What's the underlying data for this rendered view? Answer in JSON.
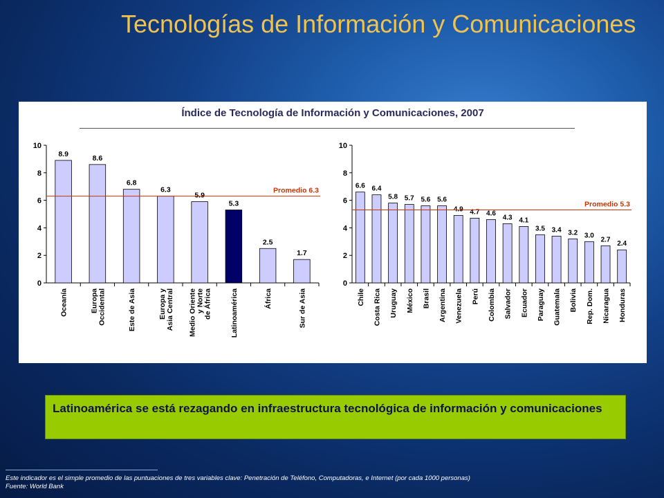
{
  "slide_title": "Tecnologías de Información y Comunicaciones",
  "callout_text": "Latinoamérica se está rezagando en infraestructura tecnológica de información y comunicaciones",
  "footnote": "Este indicador es el simple promedio de las puntuaciones de tres variables clave: Penetración de Teléfono, Computadoras, e Internet (por cada 1000 personas)",
  "source": "Fuente: World Bank",
  "colors": {
    "bar": "#ccccff",
    "highlight_bar": "#000066",
    "average_line": "#cc3300",
    "title": "#f0c250",
    "callout": "#99cc00"
  },
  "chart_data": [
    {
      "type": "bar",
      "title": "Índice de Tecnología de Información y Comunicaciones, 2007",
      "categories": [
        "Oceanía",
        "Europa Occidental",
        "Este de Asia",
        "Europa y Asia Central",
        "Medio Oriente y Norte de África",
        "Latinoamérica",
        "África",
        "Sur de Asia"
      ],
      "values": [
        8.9,
        8.6,
        6.8,
        6.3,
        5.9,
        5.3,
        2.5,
        1.7
      ],
      "value_labels": [
        "8.9",
        "8.6",
        "6.8",
        "6.3",
        "5.9",
        "5.3",
        "2.5",
        "1.7"
      ],
      "highlight": "Latinoamérica",
      "ylim": [
        0,
        10
      ],
      "yticks": [
        "0",
        "2",
        "4",
        "6",
        "8",
        "10"
      ],
      "average": 6.3,
      "average_label": "Promedio 6.3",
      "grid": false
    },
    {
      "type": "bar",
      "categories": [
        "Chile",
        "Costa Rica",
        "Uruguay",
        "México",
        "Brasil",
        "Argentina",
        "Venezuela",
        "Perú",
        "Colombia",
        "Salvador",
        "Ecuador",
        "Paraguay",
        "Guatemala",
        "Bolivia",
        "Rep. Dom.",
        "Nicaragua",
        "Honduras"
      ],
      "values": [
        6.6,
        6.4,
        5.8,
        5.7,
        5.6,
        5.6,
        4.9,
        4.7,
        4.6,
        4.3,
        4.1,
        3.5,
        3.4,
        3.2,
        3.0,
        2.7,
        2.4
      ],
      "value_labels": [
        "6.6",
        "6.4",
        "5.8",
        "5.7",
        "5.6",
        "5.6",
        "4.9",
        "4.7",
        "4.6",
        "4.3",
        "4.1",
        "3.5",
        "3.4",
        "3.2",
        "3.0",
        "2.7",
        "2.4"
      ],
      "ylim": [
        0,
        10
      ],
      "yticks": [
        "0",
        "2",
        "4",
        "6",
        "8",
        "10"
      ],
      "average": 5.3,
      "average_label": "Promedio  5.3",
      "grid": false
    }
  ]
}
